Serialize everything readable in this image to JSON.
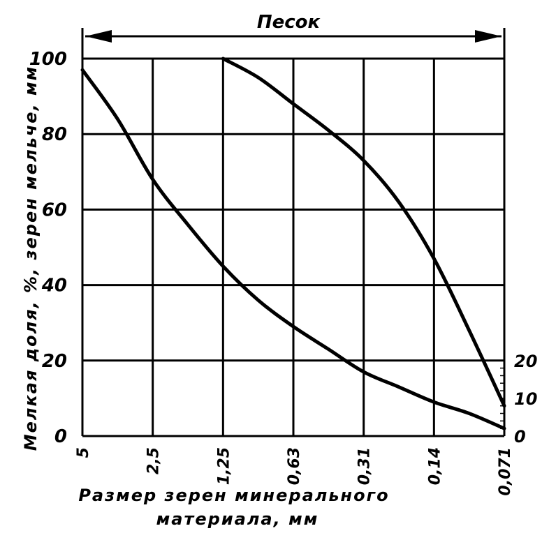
{
  "chart_data": {
    "type": "line",
    "title": "",
    "header_band": "Песок",
    "categories": [
      "5",
      "2,5",
      "1,25",
      "0,63",
      "0,31",
      "0,14",
      "0,071"
    ],
    "ylabel": "Мелкая доля, %, зерен мельче, мм",
    "xlabel_line1": "Размер зерен минерального",
    "xlabel_line2": "материала, мм",
    "yticks": [
      "0",
      "20",
      "40",
      "60",
      "80",
      "100"
    ],
    "ylim": [
      0,
      100
    ],
    "right_yticks": [
      "0",
      "10",
      "20"
    ],
    "grid": true,
    "series": [
      {
        "x": [
          0,
          0.5,
          1,
          1.5,
          2,
          2.5,
          3,
          3.5,
          4,
          4.5,
          5,
          5.5,
          6
        ],
        "values": [
          97,
          84,
          68,
          56,
          45,
          36,
          29,
          23,
          17,
          13,
          9,
          6,
          2
        ]
      },
      {
        "x": [
          2,
          2.5,
          3,
          3.5,
          4,
          4.5,
          5,
          5.5,
          6
        ],
        "values": [
          100,
          95,
          88,
          81,
          73,
          62,
          47,
          28,
          8
        ]
      }
    ]
  }
}
